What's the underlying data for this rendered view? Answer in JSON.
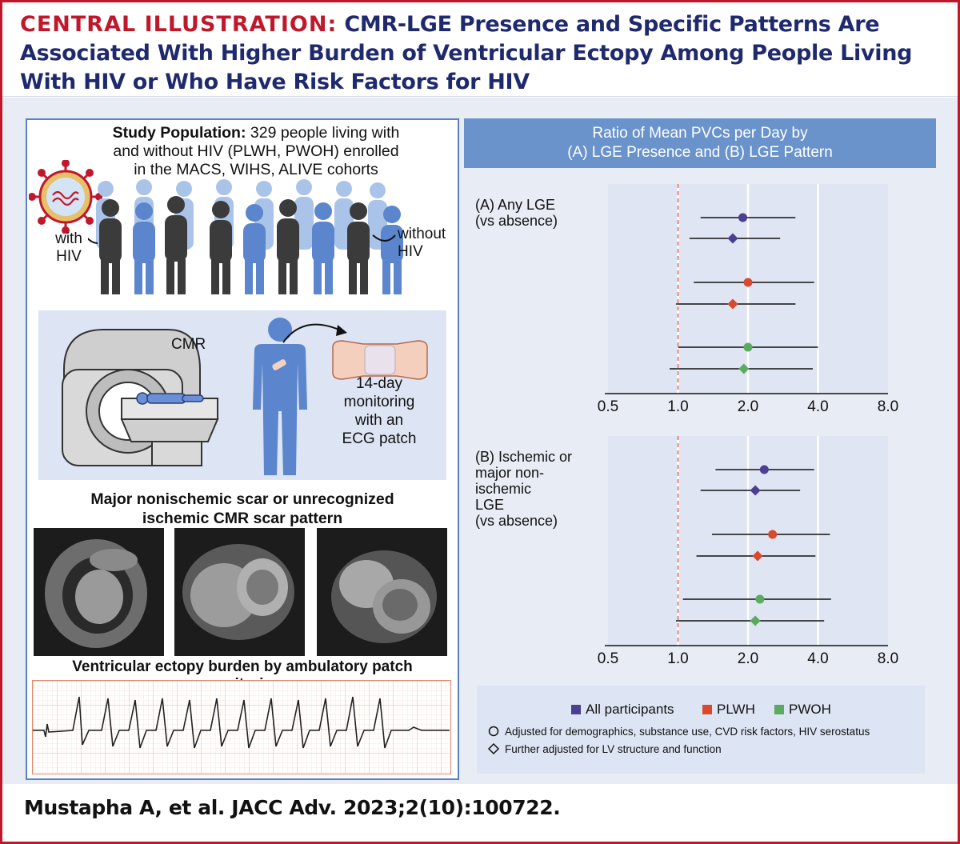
{
  "header": {
    "tag": "CENTRAL ILLUSTRATION:",
    "line1": "CMR-LGE Presence and Specific Patterns Are",
    "line2": "Associated With Higher Burden of Ventricular Ectopy Among People Living",
    "line3": "With HIV or Who Have Risk Factors for HIV"
  },
  "left": {
    "population_bold": "Study Population:",
    "population_line1": "329 people living with",
    "population_line2": "and without HIV (PLWH, PWOH) enrolled",
    "population_line3": "in the MACS, WIHS, ALIVE cohorts",
    "with_hiv_1": "with",
    "with_hiv_2": "HIV",
    "without_hiv_1": "without",
    "without_hiv_2": "HIV",
    "cmr_label": "CMR",
    "monitor_1": "14-day",
    "monitor_2": "monitoring",
    "monitor_3": "with an",
    "monitor_4": "ECG patch",
    "scar_title_1": "Major nonischemic scar or unrecognized",
    "scar_title_2": "ischemic CMR scar pattern",
    "ecg_title": "Ventricular ectopy burden by ambulatory patch monitoring"
  },
  "right_header": {
    "line1": "Ratio of Mean PVCs per Day by",
    "line2": "(A) LGE Presence and (B) LGE Pattern"
  },
  "citation": "Mustapha A, et al. JACC Adv. 2023;2(10):100722.",
  "legend": {
    "all": "All participants",
    "plwh": "PLWH",
    "pwoh": "PWOH",
    "circle_note": "Adjusted for demographics, substance use, CVD risk factors, HIV serostatus",
    "diamond_note": "Further adjusted for LV structure and function"
  },
  "colors": {
    "all": "#4a3f91",
    "plwh": "#d9492e",
    "pwoh": "#5aab5f",
    "accent_red": "#c0182b",
    "navy": "#1f2a6e",
    "panel_blue": "#6a93cc"
  },
  "chart_data": [
    {
      "type": "scatter",
      "subtype": "forest",
      "panel": "A",
      "label_lines": [
        "(A)  Any LGE",
        "(vs absence)"
      ],
      "x_scale": "log2",
      "xlim": [
        0.5,
        8.0
      ],
      "x_ticks": [
        "0.5",
        "1.0",
        "2.0",
        "4.0",
        "8.0"
      ],
      "reference_line": 1.0,
      "rows": [
        {
          "group": "all",
          "marker": "circle",
          "est": 1.9,
          "lo": 1.25,
          "hi": 3.2
        },
        {
          "group": "all",
          "marker": "diamond",
          "est": 1.72,
          "lo": 1.12,
          "hi": 2.75
        },
        {
          "group": "plwh",
          "marker": "circle",
          "est": 2.0,
          "lo": 1.17,
          "hi": 3.85
        },
        {
          "group": "plwh",
          "marker": "diamond",
          "est": 1.72,
          "lo": 0.98,
          "hi": 3.2
        },
        {
          "group": "pwoh",
          "marker": "circle",
          "est": 2.0,
          "lo": 1.0,
          "hi": 4.0
        },
        {
          "group": "pwoh",
          "marker": "diamond",
          "est": 1.92,
          "lo": 0.92,
          "hi": 3.8
        }
      ]
    },
    {
      "type": "scatter",
      "subtype": "forest",
      "panel": "B",
      "label_lines": [
        "(B)  Ischemic or",
        "major non-",
        "ischemic",
        "LGE",
        "(vs absence)"
      ],
      "x_scale": "log2",
      "xlim": [
        0.5,
        8.0
      ],
      "x_ticks": [
        "0.5",
        "1.0",
        "2.0",
        "4.0",
        "8.0"
      ],
      "reference_line": 1.0,
      "rows": [
        {
          "group": "all",
          "marker": "circle",
          "est": 2.35,
          "lo": 1.45,
          "hi": 3.85
        },
        {
          "group": "all",
          "marker": "diamond",
          "est": 2.15,
          "lo": 1.25,
          "hi": 3.35
        },
        {
          "group": "plwh",
          "marker": "circle",
          "est": 2.55,
          "lo": 1.4,
          "hi": 4.5
        },
        {
          "group": "plwh",
          "marker": "diamond",
          "est": 2.2,
          "lo": 1.2,
          "hi": 3.9
        },
        {
          "group": "pwoh",
          "marker": "circle",
          "est": 2.25,
          "lo": 1.05,
          "hi": 4.55
        },
        {
          "group": "pwoh",
          "marker": "diamond",
          "est": 2.15,
          "lo": 0.98,
          "hi": 4.25
        }
      ]
    }
  ]
}
